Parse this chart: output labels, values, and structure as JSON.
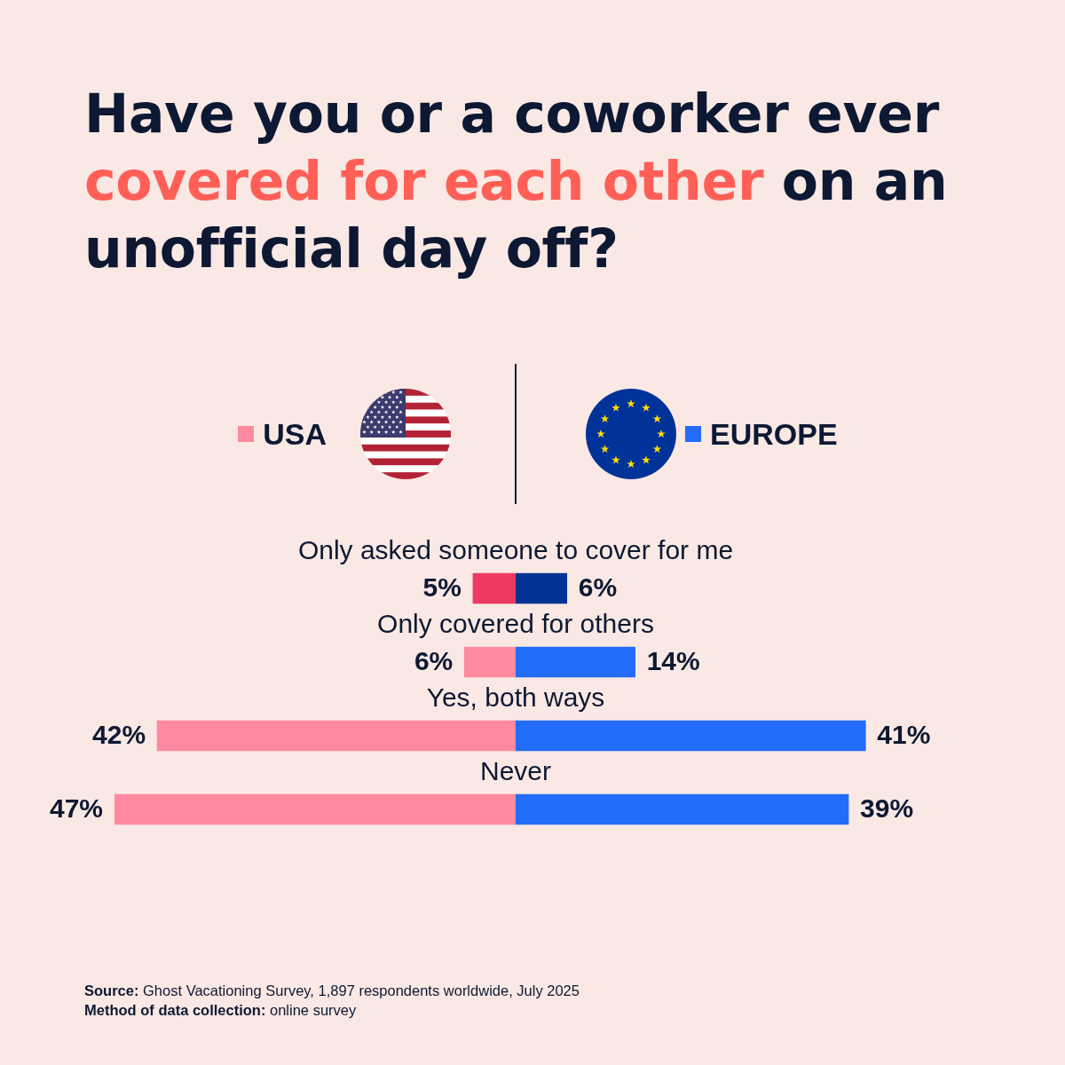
{
  "chart_data": [
    {
      "type": "bar",
      "orientation": "horizontal",
      "legend": "top",
      "title": "Have you or a coworker ever covered for each other on an unofficial day off?",
      "categories": [
        "Only asked someone to cover for me",
        "Only covered for others",
        "Yes, both ways",
        "Never"
      ],
      "xlim": [
        47,
        0
      ],
      "series": [
        {
          "name": "USA",
          "color": "#ff8aa0",
          "colors": [
            "#ee3a62",
            "#ff8aa0",
            "#ff8aa0",
            "#ff8aa0"
          ],
          "values": [
            5,
            6,
            42,
            47
          ],
          "value_labels": [
            "5%",
            "6%",
            "42%",
            "47%"
          ]
        }
      ],
      "annotations": [
        "Source: Ghost Vacationing Survey, 1,897 respondents worldwide, July 2025",
        "Method of data collection: online survey"
      ]
    },
    {
      "type": "bar",
      "orientation": "horizontal",
      "legend": "top",
      "categories": [
        null,
        null,
        null,
        null
      ],
      "series": [
        {
          "name": "EUROPE",
          "color": "#226cf9",
          "colors": [
            "#003393",
            "#226cf9",
            "#226cf9",
            "#226cf9"
          ],
          "values": [
            6,
            14,
            41,
            39
          ],
          "value_labels": [
            "6%",
            "14%",
            "41%",
            "39%"
          ]
        }
      ]
    }
  ]
}
